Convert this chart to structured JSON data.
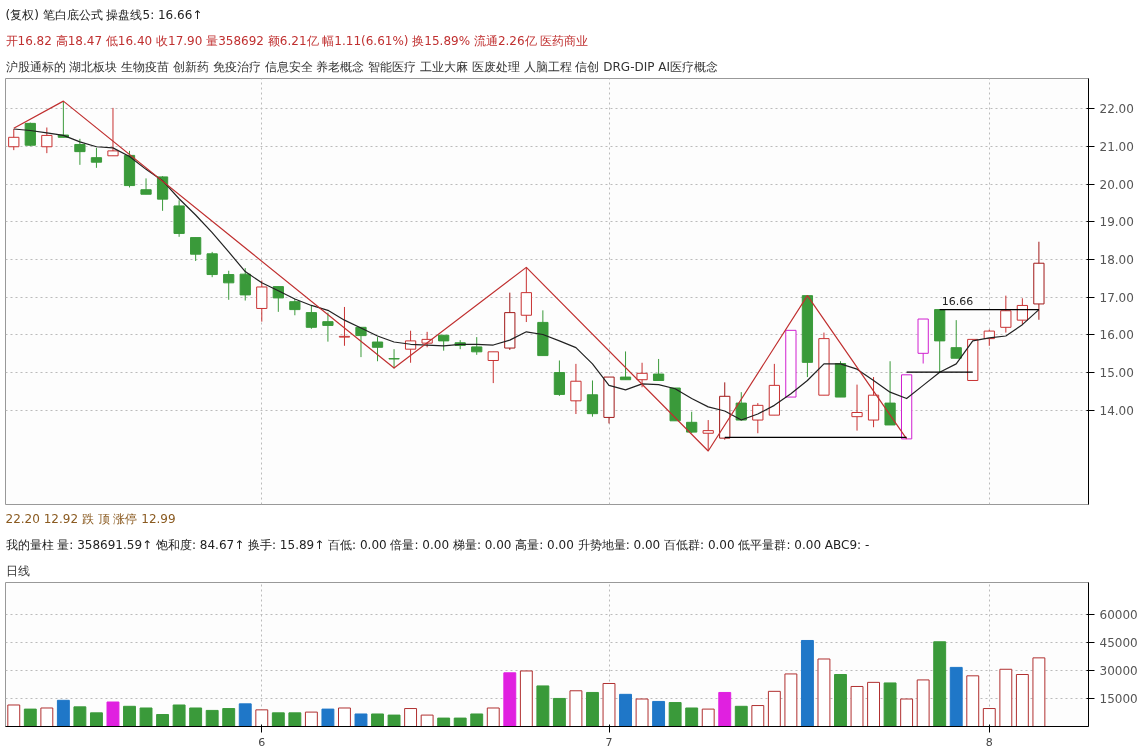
{
  "chart_data": [
    {
      "type": "candlestick",
      "title": "(复权) 笔白底公式 操盘线5: 16.66↑",
      "subtitle": "开16.82 高18.47 低16.40 收17.90 量358692 额6.21亿 幅1.11(6.61%) 换15.89% 流通2.26亿 医药商业",
      "categories": [
        null,
        null,
        null,
        null,
        null,
        null,
        null,
        null,
        null,
        null,
        null,
        null,
        null,
        null,
        null,
        "6",
        null,
        null,
        null,
        null,
        null,
        null,
        null,
        null,
        null,
        null,
        null,
        null,
        null,
        null,
        null,
        null,
        null,
        null,
        null,
        null,
        "7",
        null,
        null,
        null,
        null,
        null,
        null,
        null,
        null,
        null,
        null,
        null,
        null,
        null,
        null,
        null,
        null,
        null,
        null,
        null,
        null,
        null,
        null,
        "8",
        null,
        null,
        null
      ],
      "ohlc": [
        [
          20.99,
          21.46,
          20.9,
          21.24
        ],
        [
          21.61,
          21.63,
          21.0,
          21.03
        ],
        [
          20.99,
          21.5,
          20.82,
          21.29
        ],
        [
          21.3,
          22.2,
          21.24,
          21.24
        ],
        [
          21.05,
          21.2,
          20.51,
          20.86
        ],
        [
          20.7,
          20.96,
          20.43,
          20.58
        ],
        [
          20.75,
          22.02,
          20.75,
          20.88
        ],
        [
          20.76,
          20.88,
          19.91,
          19.96
        ],
        [
          19.85,
          20.15,
          19.73,
          19.73
        ],
        [
          20.19,
          20.21,
          19.29,
          19.6
        ],
        [
          19.42,
          19.57,
          18.6,
          18.69
        ],
        [
          18.58,
          18.58,
          17.96,
          18.14
        ],
        [
          18.15,
          18.2,
          17.53,
          17.6
        ],
        [
          17.6,
          17.7,
          16.93,
          17.38
        ],
        [
          17.61,
          17.77,
          16.91,
          17.06
        ],
        [
          16.7,
          17.44,
          16.35,
          17.27
        ],
        [
          17.28,
          17.28,
          16.61,
          16.98
        ],
        [
          16.88,
          16.95,
          16.52,
          16.67
        ],
        [
          16.59,
          16.78,
          16.16,
          16.2
        ],
        [
          16.35,
          16.59,
          15.82,
          16.25
        ],
        [
          15.94,
          16.74,
          15.71,
          15.96
        ],
        [
          16.2,
          16.2,
          15.41,
          15.98
        ],
        [
          15.81,
          15.94,
          15.3,
          15.67
        ],
        [
          15.37,
          15.62,
          15.11,
          15.36
        ],
        [
          15.62,
          16.11,
          15.26,
          15.84
        ],
        [
          15.78,
          16.08,
          15.67,
          15.88
        ],
        [
          15.99,
          15.99,
          15.58,
          15.84
        ],
        [
          15.79,
          15.86,
          15.62,
          15.72
        ],
        [
          15.68,
          15.94,
          15.47,
          15.55
        ],
        [
          15.32,
          15.55,
          14.72,
          15.55
        ],
        [
          15.65,
          17.12,
          15.6,
          16.59
        ],
        [
          16.52,
          17.79,
          16.34,
          17.12
        ],
        [
          16.33,
          16.65,
          15.45,
          15.45
        ],
        [
          15.0,
          15.32,
          14.38,
          14.42
        ],
        [
          14.25,
          15.23,
          13.9,
          14.77
        ],
        [
          14.41,
          14.79,
          13.83,
          13.91
        ],
        [
          13.81,
          14.88,
          13.65,
          14.88
        ],
        [
          14.88,
          15.56,
          14.81,
          14.81
        ],
        [
          14.81,
          15.26,
          14.61,
          14.98
        ],
        [
          14.96,
          15.36,
          14.79,
          14.79
        ],
        [
          14.59,
          14.59,
          13.72,
          13.72
        ],
        [
          13.68,
          13.96,
          13.39,
          13.42
        ],
        [
          13.39,
          13.74,
          12.92,
          13.46
        ],
        [
          13.26,
          14.74,
          13.22,
          14.37
        ],
        [
          14.19,
          14.48,
          13.74,
          13.74
        ],
        [
          13.74,
          14.19,
          13.39,
          14.13
        ],
        [
          13.87,
          15.23,
          13.87,
          14.66
        ],
        [
          14.35,
          16.12,
          14.35,
          16.12
        ],
        [
          17.04,
          17.04,
          14.88,
          15.27
        ],
        [
          14.4,
          16.06,
          14.4,
          15.9
        ],
        [
          15.24,
          15.3,
          14.35,
          14.35
        ],
        [
          13.83,
          14.68,
          13.46,
          13.94
        ],
        [
          13.74,
          14.88,
          13.55,
          14.4
        ],
        [
          14.19,
          15.3,
          13.61,
          13.61
        ],
        [
          13.24,
          14.94,
          13.24,
          14.94
        ],
        [
          15.51,
          16.42,
          15.24,
          16.42
        ],
        [
          16.67,
          16.67,
          15.01,
          15.84
        ],
        [
          15.66,
          16.39,
          15.38,
          15.38
        ],
        [
          14.79,
          15.88,
          14.79,
          15.88
        ],
        [
          15.9,
          16.14,
          15.71,
          16.1
        ],
        [
          16.2,
          17.04,
          16.06,
          16.64
        ],
        [
          16.39,
          16.97,
          16.27,
          16.78
        ],
        [
          16.82,
          18.47,
          16.4,
          17.9
        ]
      ],
      "colors": [
        "#c83232",
        "#3a9a3a",
        "#c83232",
        "#3a9a3a",
        "#3a9a3a",
        "#3a9a3a",
        "#c83232",
        "#3a9a3a",
        "#3a9a3a",
        "#3a9a3a",
        "#3a9a3a",
        "#3a9a3a",
        "#3a9a3a",
        "#3a9a3a",
        "#3a9a3a",
        "#c83232",
        "#3a9a3a",
        "#3a9a3a",
        "#3a9a3a",
        "#3a9a3a",
        "#c83232",
        "#3a9a3a",
        "#3a9a3a",
        "#3a9a3a",
        "#c83232",
        "#c83232",
        "#3a9a3a",
        "#3a9a3a",
        "#3a9a3a",
        "#c83232",
        "#a01818",
        "#c83232",
        "#3a9a3a",
        "#3a9a3a",
        "#c83232",
        "#3a9a3a",
        "#a01818",
        "#3a9a3a",
        "#c83232",
        "#3a9a3a",
        "#3a9a3a",
        "#3a9a3a",
        "#c83232",
        "#a01818",
        "#3a9a3a",
        "#c83232",
        "#c83232",
        "#d020d0",
        "#3a9a3a",
        "#c83232",
        "#3a9a3a",
        "#c83232",
        "#c83232",
        "#3a9a3a",
        "#d020d0",
        "#d020d0",
        "#3a9a3a",
        "#3a9a3a",
        "#c83232",
        "#c83232",
        "#c83232",
        "#c83232",
        "#a01818"
      ],
      "series": [
        {
          "type": "line",
          "color": "#222222",
          "values": [
            21.46,
            21.42,
            21.36,
            21.29,
            21.12,
            20.99,
            20.96,
            20.73,
            20.39,
            20.09,
            19.61,
            19.18,
            18.71,
            18.2,
            17.68,
            17.38,
            17.17,
            16.95,
            16.78,
            16.65,
            16.39,
            16.18,
            15.97,
            15.81,
            15.75,
            15.73,
            15.71,
            15.75,
            15.75,
            15.73,
            15.86,
            16.08,
            16.01,
            15.84,
            15.66,
            15.23,
            14.66,
            14.54,
            14.7,
            14.68,
            14.57,
            14.31,
            14.09,
            13.98,
            13.74,
            13.9,
            14.13,
            14.44,
            14.79,
            15.23,
            15.23,
            15.09,
            14.79,
            14.48,
            14.31,
            14.66,
            15.01,
            15.23,
            15.84,
            15.92,
            15.97,
            16.27,
            16.67
          ]
        },
        {
          "type": "line",
          "color": "#c03030",
          "values": [
            21.48,
            null,
            null,
            22.2,
            null,
            null,
            null,
            null,
            null,
            null,
            null,
            null,
            null,
            null,
            null,
            null,
            null,
            null,
            null,
            null,
            null,
            null,
            null,
            15.12,
            null,
            null,
            null,
            null,
            null,
            null,
            null,
            17.79,
            null,
            null,
            null,
            null,
            null,
            null,
            null,
            null,
            null,
            null,
            12.92,
            null,
            null,
            null,
            null,
            null,
            17.04,
            null,
            null,
            null,
            null,
            null,
            13.24,
            null,
            null,
            null,
            null,
            null,
            null,
            null,
            null
          ]
        },
        {
          "type": "line",
          "color": "#000000",
          "values": [
            null,
            null,
            null,
            null,
            null,
            null,
            null,
            null,
            null,
            null,
            null,
            null,
            null,
            null,
            null,
            null,
            null,
            null,
            null,
            null,
            null,
            null,
            null,
            null,
            null,
            null,
            null,
            null,
            null,
            null,
            null,
            null,
            null,
            null,
            null,
            null,
            null,
            null,
            null,
            null,
            null,
            null,
            null,
            13.28,
            13.28,
            13.28,
            13.28,
            13.28,
            13.28,
            13.28,
            13.28,
            13.28,
            13.28,
            13.28,
            13.28,
            null,
            null,
            null,
            null,
            null,
            null,
            null,
            null
          ]
        },
        {
          "type": "line",
          "color": "#000000",
          "values": [
            null,
            null,
            null,
            null,
            null,
            null,
            null,
            null,
            null,
            null,
            null,
            null,
            null,
            null,
            null,
            null,
            null,
            null,
            null,
            null,
            null,
            null,
            null,
            null,
            null,
            null,
            null,
            null,
            null,
            null,
            null,
            null,
            null,
            null,
            null,
            null,
            null,
            null,
            null,
            null,
            null,
            null,
            null,
            null,
            null,
            null,
            null,
            null,
            null,
            null,
            null,
            null,
            null,
            null,
            15.01,
            15.01,
            15.01,
            15.01,
            15.01,
            null,
            null,
            null,
            null
          ]
        },
        {
          "type": "line",
          "color": "#000000",
          "values": [
            null,
            null,
            null,
            null,
            null,
            null,
            null,
            null,
            null,
            null,
            null,
            null,
            null,
            null,
            null,
            null,
            null,
            null,
            null,
            null,
            null,
            null,
            null,
            null,
            null,
            null,
            null,
            null,
            null,
            null,
            null,
            null,
            null,
            null,
            null,
            null,
            null,
            null,
            null,
            null,
            null,
            null,
            null,
            null,
            null,
            null,
            null,
            null,
            null,
            null,
            null,
            null,
            null,
            null,
            null,
            null,
            16.67,
            16.67,
            16.67,
            16.67,
            16.67,
            16.67,
            16.67
          ]
        }
      ],
      "tick_labels": "y",
      "ylim": [
        11.5,
        22.8
      ],
      "yticks": [
        {
          "value": 14,
          "label": "14.00"
        },
        {
          "value": 15,
          "label": "15.00"
        },
        {
          "value": 16,
          "label": "16.00"
        },
        {
          "value": 17,
          "label": "17.00"
        },
        {
          "value": 18,
          "label": "18.00"
        },
        {
          "value": 19,
          "label": "19.00"
        },
        {
          "value": 20,
          "label": "20.00"
        },
        {
          "value": 21,
          "label": "21.00"
        },
        {
          "value": 22,
          "label": "22.00"
        }
      ],
      "grid": true,
      "annotations": [
        "沪股通标的 湖北板块 生物疫苗 创新药 免疫治疗 信息安全 养老概念 智能医疗 工业大麻 医废处理 人脑工程 信创 DRG-DIP AI医疗概念",
        {
          "text": "16.66",
          "y": 16.67
        },
        "22.20",
        "12.92",
        "跌",
        "顶",
        "涨停",
        "12.99"
      ]
    },
    {
      "type": "bar",
      "title": "我的量柱 量: 358691.59↑ 饱和度: 84.67↑ 换手: 15.89↑ 百低: 0.00 倍量: 0.00 梯量: 0.00 高量: 0.00 升势地量: 0.00 百低群: 0.00 低平量群: 0.00 ABC9: -",
      "categories": [
        null,
        null,
        null,
        null,
        null,
        null,
        null,
        null,
        null,
        null,
        null,
        null,
        null,
        null,
        null,
        "6",
        null,
        null,
        null,
        null,
        null,
        null,
        null,
        null,
        null,
        null,
        null,
        null,
        null,
        null,
        null,
        null,
        null,
        null,
        null,
        null,
        "7",
        null,
        null,
        null,
        null,
        null,
        null,
        null,
        null,
        null,
        null,
        null,
        null,
        null,
        null,
        null,
        null,
        null,
        null,
        null,
        null,
        null,
        null,
        "8",
        null,
        null,
        null
      ],
      "values": [
        11500,
        9300,
        9900,
        14000,
        10500,
        7300,
        13100,
        10800,
        9900,
        6400,
        11500,
        9900,
        8600,
        9600,
        12100,
        8900,
        7300,
        7300,
        7700,
        9300,
        9900,
        6700,
        6700,
        6100,
        9600,
        6100,
        4500,
        4500,
        6700,
        9900,
        28700,
        29700,
        21700,
        15000,
        19100,
        18200,
        23000,
        17200,
        14700,
        13400,
        12800,
        9900,
        9300,
        18200,
        10800,
        11200,
        18800,
        28100,
        46000,
        36100,
        27800,
        21400,
        23600,
        23300,
        14700,
        24900,
        45300,
        31600,
        27100,
        9600,
        30600,
        27800,
        36700
      ],
      "colors": [
        "#ffffff",
        "#3a9a3a",
        "#ffffff",
        "#1f77c8",
        "#3a9a3a",
        "#3a9a3a",
        "#e020e0",
        "#3a9a3a",
        "#3a9a3a",
        "#3a9a3a",
        "#3a9a3a",
        "#3a9a3a",
        "#3a9a3a",
        "#3a9a3a",
        "#1f77c8",
        "#ffffff",
        "#3a9a3a",
        "#3a9a3a",
        "#ffffff",
        "#1f77c8",
        "#ffffff",
        "#1f77c8",
        "#3a9a3a",
        "#3a9a3a",
        "#ffffff",
        "#ffffff",
        "#3a9a3a",
        "#3a9a3a",
        "#3a9a3a",
        "#ffffff",
        "#e020e0",
        "#ffffff",
        "#3a9a3a",
        "#3a9a3a",
        "#ffffff",
        "#3a9a3a",
        "#ffffff",
        "#1f77c8",
        "#ffffff",
        "#1f77c8",
        "#3a9a3a",
        "#3a9a3a",
        "#ffffff",
        "#e020e0",
        "#3a9a3a",
        "#ffffff",
        "#ffffff",
        "#ffffff",
        "#1f77c8",
        "#ffffff",
        "#3a9a3a",
        "#ffffff",
        "#ffffff",
        "#3a9a3a",
        "#ffffff",
        "#ffffff",
        "#3a9a3a",
        "#1f77c8",
        "#ffffff",
        "#ffffff",
        "#ffffff",
        "#ffffff",
        "#ffffff"
      ],
      "ylim": [
        0,
        77000
      ],
      "yticks": [
        15000,
        30000,
        45000,
        60000
      ],
      "grid": true,
      "annotations": [
        "日线"
      ]
    }
  ]
}
